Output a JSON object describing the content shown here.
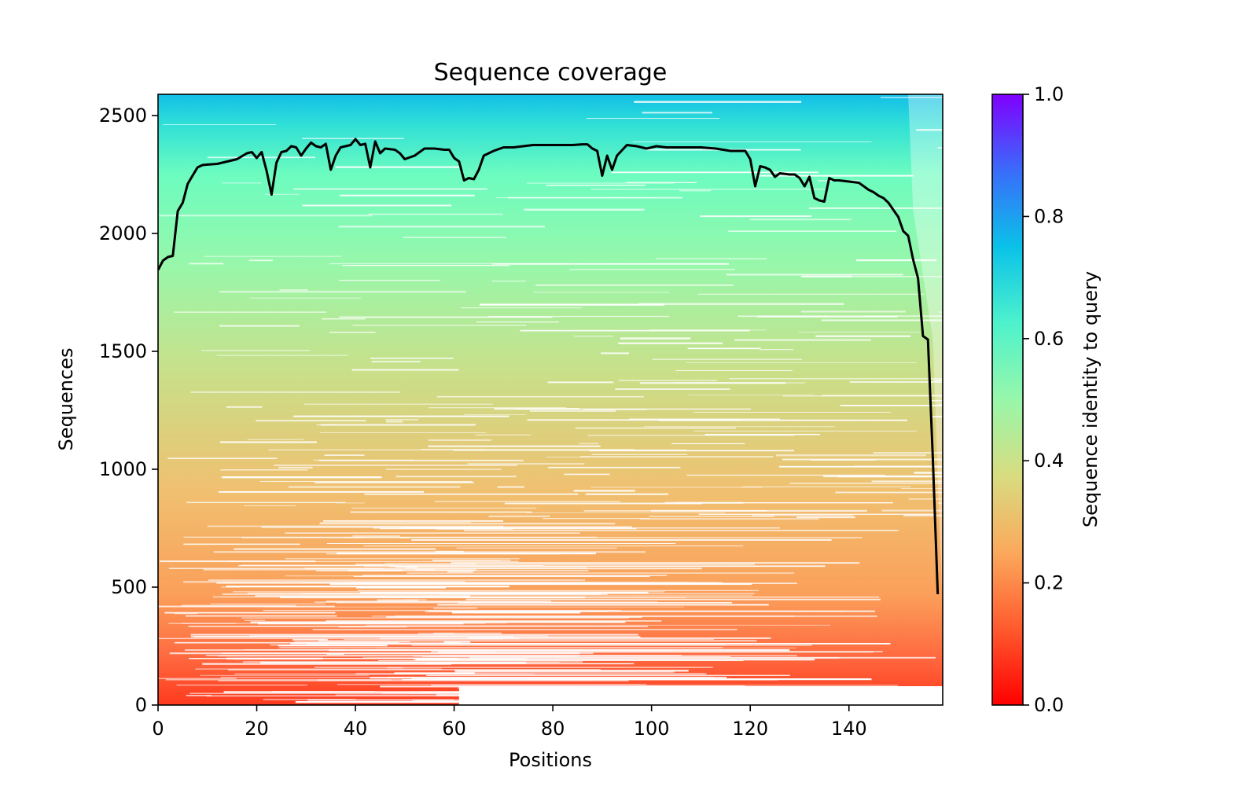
{
  "chart_data": {
    "type": "heatmap",
    "title": "Sequence coverage",
    "xlabel": "Positions",
    "ylabel": "Sequences",
    "xlim": [
      0,
      159
    ],
    "ylim": [
      0,
      2590
    ],
    "x_ticks": [
      0,
      20,
      40,
      60,
      80,
      100,
      120,
      140
    ],
    "y_ticks": [
      0,
      500,
      1000,
      1500,
      2000,
      2500
    ],
    "grid": false,
    "colorbar": {
      "label": "Sequence identity to query",
      "range": [
        0,
        1
      ],
      "ticks": [
        "0.0",
        "0.2",
        "0.4",
        "0.6",
        "0.8",
        "1.0"
      ],
      "colormap": "rainbow"
    },
    "coverage_line": {
      "color": "#000000",
      "x": [
        0,
        1,
        2,
        3,
        4,
        5,
        6,
        7,
        8,
        9,
        10,
        12,
        14,
        16,
        18,
        19,
        20,
        21,
        22,
        23,
        24,
        25,
        26,
        27,
        28,
        29,
        30,
        31,
        32,
        33,
        34,
        35,
        36,
        37,
        38,
        39,
        40,
        41,
        42,
        43,
        44,
        45,
        46,
        48,
        49,
        50,
        52,
        54,
        56,
        58,
        59,
        60,
        61,
        62,
        63,
        64,
        65,
        66,
        68,
        70,
        72,
        74,
        76,
        78,
        80,
        82,
        84,
        86,
        87,
        88,
        89,
        90,
        91,
        92,
        93,
        95,
        97,
        99,
        101,
        103,
        105,
        108,
        110,
        113,
        116,
        119,
        120,
        121,
        122,
        123,
        124,
        125,
        126,
        128,
        129,
        130,
        131,
        132,
        133,
        134,
        135,
        136,
        137,
        138,
        140,
        142,
        143,
        144,
        145,
        146,
        147,
        148,
        149,
        150,
        151,
        152,
        153,
        154,
        155,
        156,
        157,
        158
      ],
      "y": [
        1845,
        1885,
        1900,
        1905,
        2095,
        2130,
        2210,
        2245,
        2280,
        2290,
        2292,
        2295,
        2305,
        2315,
        2340,
        2345,
        2320,
        2345,
        2265,
        2165,
        2300,
        2345,
        2350,
        2370,
        2365,
        2330,
        2360,
        2385,
        2370,
        2365,
        2380,
        2270,
        2330,
        2365,
        2370,
        2375,
        2400,
        2375,
        2380,
        2280,
        2390,
        2340,
        2360,
        2355,
        2340,
        2315,
        2330,
        2360,
        2360,
        2355,
        2355,
        2320,
        2305,
        2225,
        2235,
        2230,
        2270,
        2330,
        2350,
        2365,
        2365,
        2370,
        2375,
        2375,
        2375,
        2375,
        2375,
        2378,
        2378,
        2360,
        2350,
        2245,
        2330,
        2270,
        2330,
        2375,
        2370,
        2360,
        2370,
        2365,
        2365,
        2365,
        2365,
        2360,
        2350,
        2350,
        2315,
        2200,
        2285,
        2280,
        2270,
        2240,
        2255,
        2250,
        2250,
        2235,
        2200,
        2240,
        2150,
        2140,
        2135,
        2235,
        2225,
        2225,
        2220,
        2215,
        2200,
        2185,
        2175,
        2160,
        2150,
        2130,
        2100,
        2070,
        2010,
        1990,
        1890,
        1810,
        1565,
        1550,
        1050,
        470
      ]
    }
  }
}
